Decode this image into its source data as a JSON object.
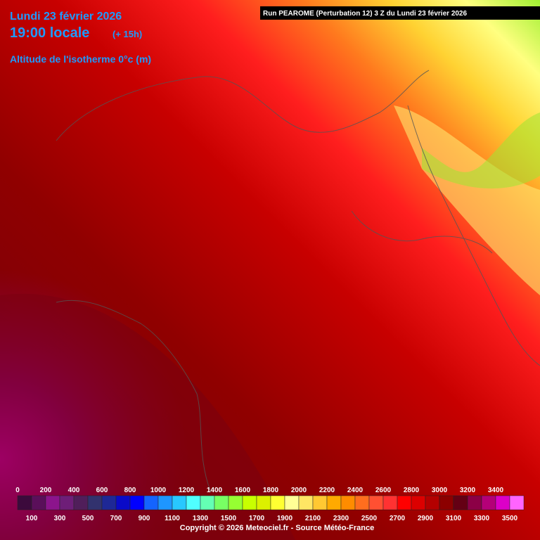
{
  "header": {
    "date": "Lundi 23 février 2026",
    "time": "19:00 locale",
    "offset": "(+ 15h)",
    "parameter": "Altitude de l'isotherme 0°c (m)",
    "run": "Run PEAROME (Perturbation 12) 3 Z du Lundi 23 février 2026"
  },
  "legend": {
    "labels_top": [
      "0",
      "200",
      "400",
      "600",
      "800",
      "1000",
      "1200",
      "1400",
      "1600",
      "1800",
      "2000",
      "2200",
      "2400",
      "2600",
      "2800",
      "3000",
      "3200",
      "3400"
    ],
    "labels_bottom": [
      "100",
      "300",
      "500",
      "700",
      "900",
      "1100",
      "1300",
      "1500",
      "1700",
      "1900",
      "2100",
      "2300",
      "2500",
      "2700",
      "2900",
      "3100",
      "3300",
      "3500"
    ],
    "colors": [
      "#3c0a3c",
      "#5a0f5a",
      "#8c148c",
      "#6e1e78",
      "#501e5a",
      "#32326e",
      "#1e2896",
      "#0a0ac8",
      "#0000ff",
      "#1464ff",
      "#1e96ff",
      "#28c8ff",
      "#50ffff",
      "#64ffb4",
      "#78ff64",
      "#96ff32",
      "#c8ff00",
      "#dcf000",
      "#ffff32",
      "#ffff96",
      "#ffe664",
      "#ffc832",
      "#ffaa00",
      "#ff8c00",
      "#ff6e1e",
      "#ff5032",
      "#ff3232",
      "#ff0000",
      "#dc0000",
      "#b40000",
      "#8c0000",
      "#640014",
      "#8c0046",
      "#b40078",
      "#dc00c8",
      "#ff64ff"
    ]
  },
  "footer": {
    "copyright": "Copyright © 2026 Meteociel.fr - Source Météo-France"
  }
}
